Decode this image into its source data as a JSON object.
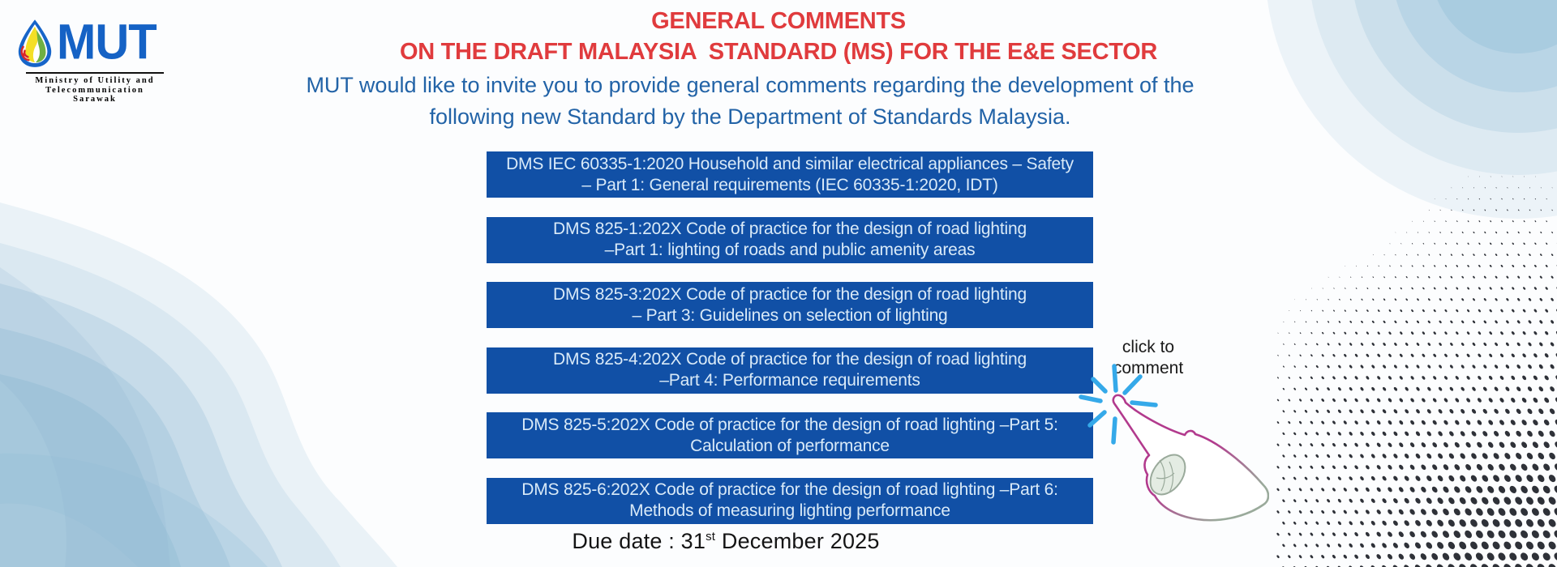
{
  "logo": {
    "acronym": "MUT",
    "ministry_line1": "Ministry of Utility and",
    "ministry_line2": "Telecommunication",
    "ministry_line3": "Sarawak"
  },
  "header": {
    "title_line1": "GENERAL COMMENTS",
    "title_line2": "ON THE DRAFT MALAYSIA  STANDARD (MS) FOR THE E&E SECTOR",
    "intro_line1": "MUT would like to invite you to provide general comments regarding the development of the",
    "intro_line2": "following new Standard by the Department of Standards Malaysia."
  },
  "standards": {
    "items": [
      {
        "line1": "DMS IEC 60335-1:2020 Household and similar electrical appliances – Safety",
        "line2": "– Part 1: General requirements (IEC 60335-1:2020, IDT)"
      },
      {
        "line1": "DMS 825-1:202X Code of practice for the design of road lighting",
        "line2": "–Part 1: lighting of roads and public amenity areas"
      },
      {
        "line1": "DMS 825-3:202X Code of practice for the design of road lighting",
        "line2": "– Part 3: Guidelines on selection of lighting"
      },
      {
        "line1": "DMS 825-4:202X Code of practice for the design of road lighting",
        "line2": "–Part 4: Performance requirements"
      },
      {
        "line1": "DMS 825-5:202X Code of practice for the design of road lighting –Part 5:",
        "line2": "Calculation of performance"
      },
      {
        "line1": "DMS 825-6:202X Code of practice for the design of road lighting –Part 6:",
        "line2": "Methods of measuring lighting performance"
      }
    ]
  },
  "click_hint": {
    "line1": "click to",
    "line2": "comment"
  },
  "due": {
    "prefix": "Due date : 31",
    "ordinal": "st",
    "suffix": " December 2025"
  },
  "colors": {
    "title_red": "#E03B3D",
    "intro_blue": "#2263A7",
    "box_blue": "#1150A6",
    "box_text": "#D9EAF8",
    "starburst_blue": "#35A9E9",
    "hand_outline_top": "#B23A8D",
    "hand_outline_bottom": "#9AAA9B",
    "dots_gray": "#2E3138",
    "logo_blue": "#1562C5"
  }
}
